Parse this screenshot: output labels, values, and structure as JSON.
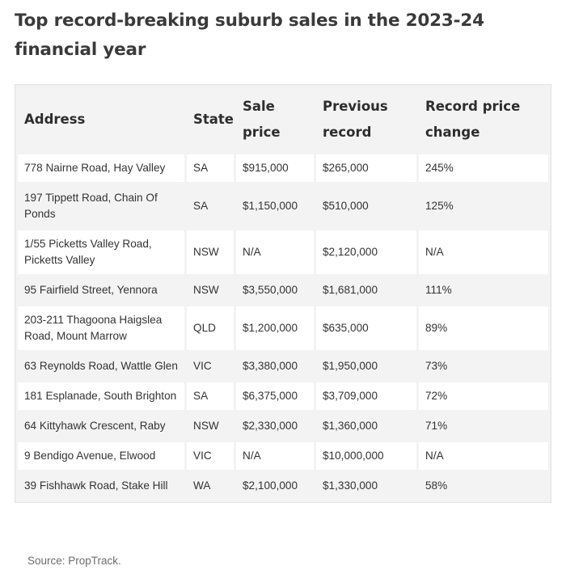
{
  "title": "Top record-breaking suburb sales in the 2023-24 financial year",
  "table": {
    "headers": [
      "Address",
      "State",
      "Sale price",
      "Previous record",
      "Record price change"
    ],
    "rows": [
      [
        "778 Nairne Road, Hay Valley",
        "SA",
        "$915,000",
        "$265,000",
        "245%"
      ],
      [
        "197 Tippett Road, Chain Of Ponds",
        "SA",
        "$1,150,000",
        "$510,000",
        "125%"
      ],
      [
        "1/55 Picketts Valley Road, Picketts Valley",
        "NSW",
        "N/A",
        "$2,120,000",
        "N/A"
      ],
      [
        "95 Fairfield Street, Yennora",
        "NSW",
        "$3,550,000",
        "$1,681,000",
        "111%"
      ],
      [
        "203-211 Thagoona Haigslea Road, Mount Marrow",
        "QLD",
        "$1,200,000",
        "$635,000",
        "89%"
      ],
      [
        "63 Reynolds Road, Wattle Glen",
        "VIC",
        "$3,380,000",
        "$1,950,000",
        "73%"
      ],
      [
        "181 Esplanade, South Brighton",
        "SA",
        "$6,375,000",
        "$3,709,000",
        "72%"
      ],
      [
        "64 Kittyhawk Crescent, Raby",
        "NSW",
        "$2,330,000",
        "$1,360,000",
        "71%"
      ],
      [
        "9 Bendigo Avenue, Elwood",
        "VIC",
        "N/A",
        "$10,000,000",
        "N/A"
      ],
      [
        "39 Fishhawk Road, Stake Hill",
        "WA",
        "$2,100,000",
        "$1,330,000",
        "58%"
      ]
    ]
  },
  "source": "Source: PropTrack."
}
